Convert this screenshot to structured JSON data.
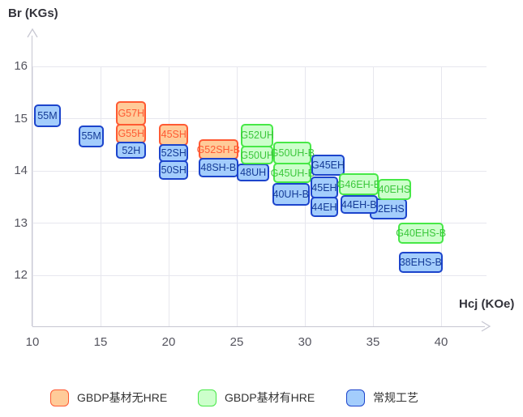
{
  "chart_data": {
    "type": "scatter",
    "title": "",
    "xlabel": "Hcj (KOe)",
    "ylabel": "Br (KGs)",
    "x_ticks": [
      10,
      15,
      20,
      25,
      30,
      35,
      40
    ],
    "y_ticks": [
      16,
      15,
      14,
      13,
      12
    ],
    "xlim": [
      10,
      43.3
    ],
    "ylim": [
      11,
      16.4
    ],
    "grid": true,
    "legend_position": "bottom",
    "series": [
      {
        "id": "gbdp_no_hre",
        "name": "GBDP基材无HRE",
        "fill": "#ffcb99",
        "border": "#ff5a33",
        "text": "#ff5a33"
      },
      {
        "id": "gbdp_hre",
        "name": "GBDP基材有HRE",
        "fill": "#ccffcb",
        "border": "#47e847",
        "text": "#3cc73c"
      },
      {
        "id": "conventional",
        "name": "常规工艺",
        "fill": "#a3cdfc",
        "border": "#1c44cc",
        "text": "#143a96"
      }
    ],
    "boxes": [
      {
        "label": "55M",
        "series": "conventional",
        "hcj": [
          10.1,
          12.1
        ],
        "br": [
          15.27,
          14.84
        ]
      },
      {
        "label": "55M",
        "series": "conventional",
        "hcj": [
          13.4,
          15.25
        ],
        "br": [
          14.87,
          14.45
        ]
      },
      {
        "label": "G57H",
        "series": "gbdp_no_hre",
        "hcj": [
          16.15,
          18.35
        ],
        "br": [
          15.33,
          14.87
        ]
      },
      {
        "label": "G55H",
        "series": "gbdp_no_hre",
        "hcj": [
          16.15,
          18.35
        ],
        "br": [
          14.9,
          14.53
        ]
      },
      {
        "label": "52H",
        "series": "conventional",
        "hcj": [
          16.15,
          18.35
        ],
        "br": [
          14.56,
          14.23
        ]
      },
      {
        "label": "45SH",
        "series": "gbdp_no_hre",
        "hcj": [
          19.3,
          21.45
        ],
        "br": [
          14.9,
          14.48
        ]
      },
      {
        "label": "52SH",
        "series": "conventional",
        "hcj": [
          19.3,
          21.45
        ],
        "br": [
          14.51,
          14.17
        ]
      },
      {
        "label": "50SH",
        "series": "conventional",
        "hcj": [
          19.3,
          21.45
        ],
        "br": [
          14.2,
          13.83
        ]
      },
      {
        "label": "G52SH-B",
        "series": "gbdp_no_hre",
        "hcj": [
          22.2,
          25.1
        ],
        "br": [
          14.6,
          14.22
        ]
      },
      {
        "label": "48SH-B",
        "series": "conventional",
        "hcj": [
          22.2,
          25.1
        ],
        "br": [
          14.25,
          13.88
        ]
      },
      {
        "label": "48UH",
        "series": "conventional",
        "hcj": [
          25.0,
          27.4
        ],
        "br": [
          14.14,
          13.8
        ]
      },
      {
        "label": "G52UH",
        "series": "gbdp_hre",
        "hcj": [
          25.3,
          27.7
        ],
        "br": [
          14.9,
          14.45
        ]
      },
      {
        "label": "G50UH",
        "series": "gbdp_hre",
        "hcj": [
          25.3,
          27.7
        ],
        "br": [
          14.48,
          14.12
        ]
      },
      {
        "label": "G50UH-B",
        "series": "gbdp_hre",
        "hcj": [
          27.7,
          30.5
        ],
        "br": [
          14.56,
          14.12
        ]
      },
      {
        "label": "G45UH-B",
        "series": "gbdp_hre",
        "hcj": [
          27.7,
          30.5
        ],
        "br": [
          14.15,
          13.77
        ]
      },
      {
        "label": "40UH-B",
        "series": "conventional",
        "hcj": [
          27.6,
          30.35
        ],
        "br": [
          13.77,
          13.33
        ]
      },
      {
        "label": "G45EH",
        "series": "conventional",
        "hcj": [
          30.5,
          32.9
        ],
        "br": [
          14.31,
          13.91
        ]
      },
      {
        "label": "45EH",
        "series": "conventional",
        "hcj": [
          30.4,
          32.45
        ],
        "br": [
          13.89,
          13.47
        ]
      },
      {
        "label": "44EH",
        "series": "conventional",
        "hcj": [
          30.4,
          32.45
        ],
        "br": [
          13.5,
          13.12
        ]
      },
      {
        "label": "42EHS",
        "series": "conventional",
        "hcj": [
          34.75,
          37.5
        ],
        "br": [
          13.47,
          13.07
        ]
      },
      {
        "label": "G46EH-B",
        "series": "gbdp_hre",
        "hcj": [
          32.5,
          35.4
        ],
        "br": [
          13.95,
          13.53
        ]
      },
      {
        "label": "44EH-B",
        "series": "conventional",
        "hcj": [
          32.6,
          35.35
        ],
        "br": [
          13.53,
          13.18
        ]
      },
      {
        "label": "40EHS",
        "series": "gbdp_hre",
        "hcj": [
          35.35,
          37.8
        ],
        "br": [
          13.84,
          13.44
        ]
      },
      {
        "label": "G40EHS-B",
        "series": "gbdp_hre",
        "hcj": [
          36.85,
          40.2
        ],
        "br": [
          13.01,
          12.6
        ]
      },
      {
        "label": "38EHS-B",
        "series": "conventional",
        "hcj": [
          36.9,
          40.1
        ],
        "br": [
          12.45,
          12.05
        ]
      }
    ]
  },
  "legend": {
    "items": [
      {
        "label": "GBDP基材无HRE"
      },
      {
        "label": "GBDP基材有HRE"
      },
      {
        "label": "常规工艺"
      }
    ]
  }
}
